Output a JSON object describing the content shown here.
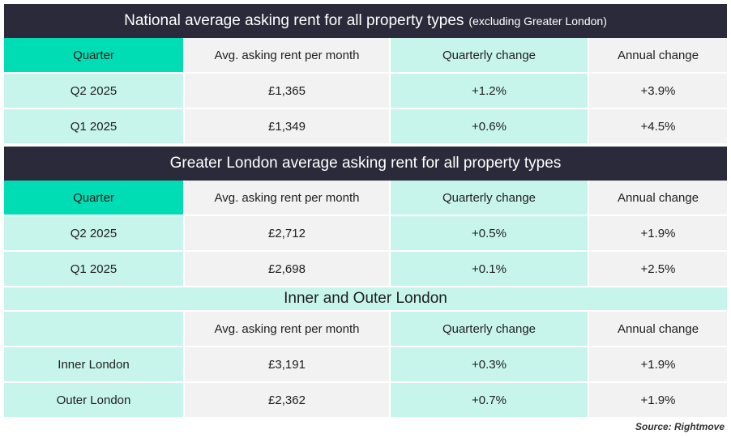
{
  "national": {
    "title": "National average asking rent for all property types",
    "title_suffix": "(excluding Greater London)",
    "headers": [
      "Quarter",
      "Avg. asking rent per month",
      "Quarterly change",
      "Annual change"
    ],
    "rows": [
      [
        "Q2 2025",
        "£1,365",
        "+1.2%",
        "+3.9%"
      ],
      [
        "Q1 2025",
        "£1,349",
        "+0.6%",
        "+4.5%"
      ]
    ]
  },
  "london": {
    "title": "Greater London average asking rent for all property types",
    "headers": [
      "Quarter",
      "Avg. asking rent per month",
      "Quarterly change",
      "Annual change"
    ],
    "rows": [
      [
        "Q2 2025",
        "£2,712",
        "+0.5%",
        "+1.9%"
      ],
      [
        "Q1 2025",
        "£2,698",
        "+0.1%",
        "+2.5%"
      ]
    ]
  },
  "inner_outer": {
    "title": "Inner and Outer London",
    "headers": [
      "",
      "Avg. asking rent per month",
      "Quarterly change",
      "Annual change"
    ],
    "rows": [
      [
        "Inner London",
        "£3,191",
        "+0.3%",
        "+1.9%"
      ],
      [
        "Outer London",
        "£2,362",
        "+0.7%",
        "+1.9%"
      ]
    ]
  },
  "source": "Source: Rightmove",
  "colors": {
    "title_bg": "#2a2a3a",
    "header_accent": "#00dcb4",
    "mint": "#c7f5ec",
    "grey": "#f2f2f2"
  }
}
